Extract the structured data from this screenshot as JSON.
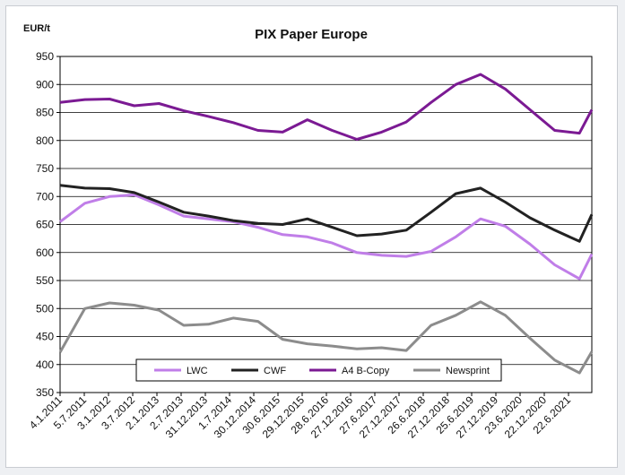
{
  "chart_data": {
    "type": "line",
    "title": "PIX Paper Europe",
    "ylabel": "EUR/t",
    "ylim": [
      350,
      950
    ],
    "yticks": [
      350,
      400,
      450,
      500,
      550,
      600,
      650,
      700,
      750,
      800,
      850,
      900,
      950
    ],
    "grid": "horizontal",
    "legend_position": "bottom-center",
    "xticks": [
      "4.1.2011",
      "5.7.2011",
      "3.1.2012",
      "3.7.2012",
      "2.1.2013",
      "2.7.2013",
      "31.12.2013",
      "1.7.2014",
      "30.12.2014",
      "30.6.2015",
      "29.12.2015",
      "28.6.2016",
      "27.12.2016",
      "27.6.2017",
      "27.12.2017",
      "26.6.2018",
      "27.12.2018",
      "25.6.2019",
      "27.12.2019",
      "23.6.2020",
      "22.12.2020",
      "22.6.2021"
    ],
    "x": [
      2011.0,
      2011.5,
      2012.0,
      2012.5,
      2013.0,
      2013.5,
      2014.0,
      2014.5,
      2015.0,
      2015.5,
      2016.0,
      2016.5,
      2017.0,
      2017.5,
      2018.0,
      2018.5,
      2019.0,
      2019.5,
      2020.0,
      2020.5,
      2021.0,
      2021.5,
      2021.75
    ],
    "series": [
      {
        "name": "LWC",
        "color": "#c07ee8",
        "values": [
          655,
          688,
          700,
          703,
          685,
          665,
          660,
          655,
          645,
          632,
          628,
          617,
          600,
          595,
          593,
          602,
          628,
          660,
          647,
          615,
          578,
          553,
          597
        ]
      },
      {
        "name": "CWF",
        "color": "#222222",
        "values": [
          720,
          715,
          714,
          707,
          690,
          672,
          665,
          657,
          652,
          650,
          660,
          645,
          630,
          633,
          640,
          672,
          705,
          715,
          690,
          662,
          640,
          620,
          668
        ]
      },
      {
        "name": "A4 B-Copy",
        "color": "#7b1a93",
        "values": [
          868,
          873,
          874,
          862,
          866,
          853,
          843,
          832,
          818,
          815,
          837,
          818,
          802,
          815,
          833,
          868,
          900,
          918,
          892,
          855,
          818,
          813,
          855
        ]
      },
      {
        "name": "Newsprint",
        "color": "#8c8c8c",
        "values": [
          422,
          500,
          510,
          506,
          497,
          470,
          472,
          483,
          477,
          445,
          437,
          433,
          428,
          430,
          425,
          470,
          488,
          512,
          488,
          447,
          408,
          385,
          423
        ]
      }
    ]
  }
}
